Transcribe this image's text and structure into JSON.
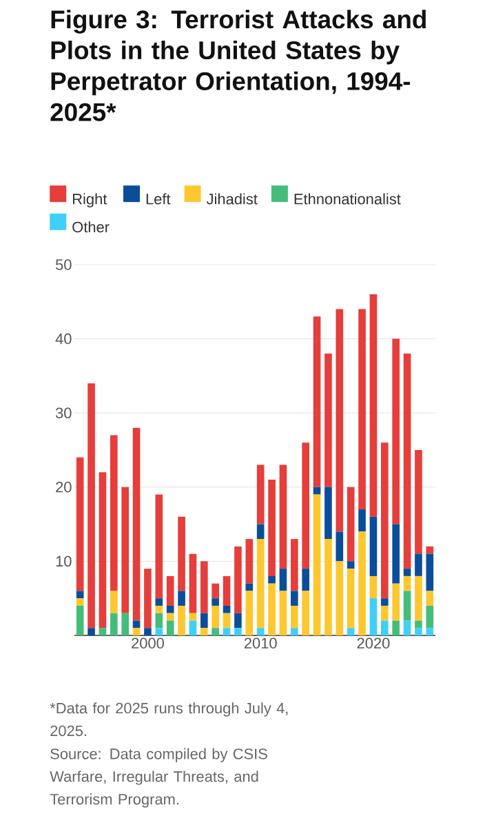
{
  "chart_data": {
    "type": "bar",
    "stacked": true,
    "title": "Figure 3: Terrorist Attacks and Plots in the United States by Perpetrator Orientation, 1994-2025*",
    "annotations": [
      "*Data for 2025 runs through July 4, 2025.",
      "Source: Data compiled by CSIS Warfare, Irregular Threats, and Terrorism Program."
    ],
    "x": [
      1994,
      1995,
      1996,
      1997,
      1998,
      1999,
      2000,
      2001,
      2002,
      2003,
      2004,
      2005,
      2006,
      2007,
      2008,
      2009,
      2010,
      2011,
      2012,
      2013,
      2014,
      2015,
      2016,
      2017,
      2018,
      2019,
      2020,
      2021,
      2022,
      2023,
      2024,
      2025
    ],
    "xlim": [
      1993.5,
      2025.5
    ],
    "xticks": [
      2000,
      2010,
      2020
    ],
    "ylim": [
      0,
      50
    ],
    "yticks": [
      10,
      20,
      30,
      40,
      50
    ],
    "grid": "y",
    "legend": "top left",
    "series": [
      {
        "name": "Other",
        "color": "#40d0f7",
        "values": [
          0,
          0,
          0,
          0,
          0,
          0,
          0,
          1,
          0,
          0,
          2,
          0,
          0,
          1,
          1,
          0,
          1,
          0,
          0,
          1,
          0,
          0,
          0,
          0,
          1,
          0,
          5,
          2,
          0,
          2,
          1,
          1
        ]
      },
      {
        "name": "Ethnonationalist",
        "color": "#45bd7a",
        "values": [
          4,
          0,
          1,
          3,
          3,
          0,
          0,
          2,
          2,
          0,
          0,
          0,
          1,
          0,
          0,
          0,
          0,
          0,
          0,
          0,
          0,
          0,
          0,
          0,
          0,
          0,
          0,
          0,
          2,
          4,
          1,
          3
        ]
      },
      {
        "name": "Jihadist",
        "color": "#fdc82f",
        "values": [
          1,
          0,
          0,
          3,
          0,
          1,
          0,
          1,
          1,
          4,
          1,
          1,
          3,
          2,
          0,
          6,
          12,
          7,
          6,
          3,
          6,
          19,
          13,
          10,
          8,
          14,
          3,
          2,
          5,
          2,
          6,
          2
        ]
      },
      {
        "name": "Left",
        "color": "#0a4e9b",
        "values": [
          1,
          1,
          0,
          0,
          0,
          1,
          1,
          1,
          1,
          2,
          0,
          2,
          1,
          1,
          2,
          1,
          2,
          1,
          3,
          2,
          3,
          1,
          7,
          4,
          1,
          3,
          8,
          1,
          8,
          1,
          3,
          5
        ]
      },
      {
        "name": "Right",
        "color": "#e53e3b",
        "values": [
          18,
          33,
          21,
          21,
          17,
          26,
          8,
          14,
          4,
          10,
          8,
          7,
          2,
          4,
          9,
          6,
          8,
          13,
          14,
          7,
          17,
          23,
          18,
          30,
          10,
          27,
          30,
          21,
          25,
          29,
          14,
          1
        ]
      }
    ]
  }
}
